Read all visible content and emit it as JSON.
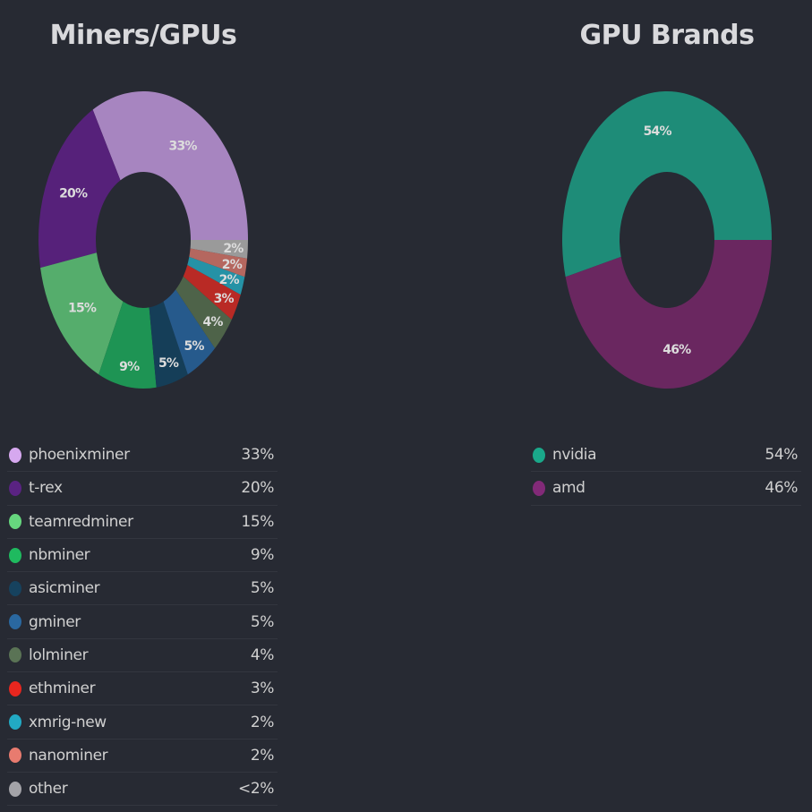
{
  "chart_data": [
    {
      "type": "pie",
      "title": "Miners/GPUs",
      "categories": [
        "phoenixminer",
        "t-rex",
        "teamredminer",
        "nbminer",
        "asicminer",
        "gminer",
        "lolminer",
        "ethminer",
        "xmrig-new",
        "nanominer",
        "other"
      ],
      "values": [
        33,
        20,
        15,
        9,
        5,
        5,
        4,
        3,
        2,
        2,
        2
      ],
      "labels": [
        "33%",
        "20%",
        "15%",
        "9%",
        "5%",
        "5%",
        "4%",
        "3%",
        "2%",
        "2%",
        "<2%"
      ],
      "slice_labels": [
        "33%",
        "20%",
        "15%",
        "9%",
        "5%",
        "5%",
        "4%",
        "3%",
        "2%",
        "2%",
        "2%"
      ],
      "colors": [
        "#a785c0",
        "#56217a",
        "#55ad6c",
        "#1e9454",
        "#153e58",
        "#265a8c",
        "#4e6349",
        "#b92a25",
        "#2592a6",
        "#b5675f",
        "#9a9a9a"
      ],
      "legend_colors": [
        "#d6a8ef",
        "#5a2382",
        "#66d67e",
        "#1fba5f",
        "#16425e",
        "#2a68a0",
        "#5a7355",
        "#e8261f",
        "#22aac4",
        "#e87b6f",
        "#a3a3a8"
      ],
      "legend": "bottom"
    },
    {
      "type": "pie",
      "title": "GPU Brands",
      "categories": [
        "nvidia",
        "amd"
      ],
      "values": [
        54,
        46
      ],
      "labels": [
        "54%",
        "46%"
      ],
      "slice_labels": [
        "54%",
        "46%"
      ],
      "colors": [
        "#1e8c78",
        "#6a2760"
      ],
      "legend_colors": [
        "#1aa88a",
        "#822a78"
      ],
      "legend": "bottom"
    }
  ]
}
